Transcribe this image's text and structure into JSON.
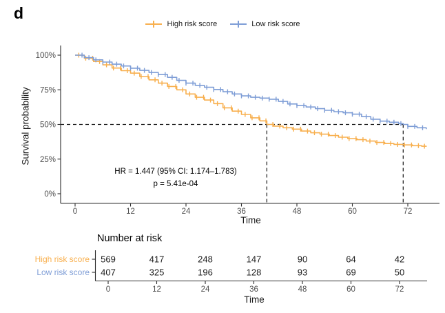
{
  "panel_label": "d",
  "colors": {
    "high": "#F8AF4D",
    "low": "#7E9DD6",
    "axis": "#2b2b2b",
    "tick_text": "#4d4d4d",
    "dashed": "#111111",
    "number_text": "#1a1a1a"
  },
  "legend": {
    "items": [
      {
        "key": "high",
        "label": "High risk score"
      },
      {
        "key": "low",
        "label": "Low risk score"
      }
    ]
  },
  "annotation": {
    "line1": "HR = 1.447 (95% CI: 1.174–1.783)",
    "line2": "p = 5.41e-04"
  },
  "chart_data": {
    "type": "line",
    "subtype": "kaplan-meier-step",
    "title": "",
    "xlabel": "Time",
    "ylabel": "Survival probability",
    "xlim": [
      0,
      76
    ],
    "xticks": [
      0,
      12,
      24,
      36,
      48,
      60,
      72
    ],
    "ylim": [
      0,
      100
    ],
    "yticks": [
      {
        "p": 100,
        "label": "100%"
      },
      {
        "p": 75,
        "label": "75%"
      },
      {
        "p": 50,
        "label": "50%"
      },
      {
        "p": 25,
        "label": "25%"
      },
      {
        "p": 0,
        "label": "0%"
      }
    ],
    "grid": false,
    "legend_position": "top",
    "median_lines": {
      "reference_percent": 50,
      "high_median_time": 41.5,
      "low_median_time": 71
    },
    "series": [
      {
        "name": "High risk score",
        "color_key": "high",
        "points": [
          [
            0,
            100
          ],
          [
            2,
            97.8
          ],
          [
            4,
            95.4
          ],
          [
            6,
            93
          ],
          [
            8,
            90.7
          ],
          [
            10,
            88.8
          ],
          [
            12,
            87
          ],
          [
            14,
            84.6
          ],
          [
            16,
            82.2
          ],
          [
            18,
            79.8
          ],
          [
            20,
            77.4
          ],
          [
            22,
            75
          ],
          [
            24,
            72
          ],
          [
            26,
            69.6
          ],
          [
            28,
            67.6
          ],
          [
            30,
            65
          ],
          [
            32,
            62
          ],
          [
            34,
            59.6
          ],
          [
            36,
            57.2
          ],
          [
            38,
            54.8
          ],
          [
            40,
            52.6
          ],
          [
            41.5,
            50
          ],
          [
            43,
            48.8
          ],
          [
            45,
            47.6
          ],
          [
            47,
            46.6
          ],
          [
            49,
            45.2
          ],
          [
            51,
            44
          ],
          [
            53,
            43
          ],
          [
            55,
            42
          ],
          [
            57,
            40.8
          ],
          [
            59,
            39.8
          ],
          [
            61,
            39
          ],
          [
            63,
            38
          ],
          [
            65,
            37
          ],
          [
            67,
            36.2
          ],
          [
            69,
            35.6
          ],
          [
            71,
            35.2
          ],
          [
            73,
            34.7
          ],
          [
            75,
            34.3
          ],
          [
            76,
            34
          ]
        ],
        "censor_times": [
          0.8,
          2.3,
          3.8,
          5.3,
          6.8,
          8.3,
          9.8,
          11.3,
          12.8,
          14.3,
          15.8,
          17.3,
          18.8,
          20.3,
          21.8,
          23.3,
          24.8,
          26.3,
          27.8,
          29.3,
          30.8,
          32.3,
          33.8,
          35.3,
          36.8,
          38.3,
          39.8,
          41.3,
          42.8,
          44.3,
          45.8,
          47.3,
          48.8,
          50.3,
          51.8,
          53.3,
          54.8,
          56.3,
          57.8,
          59.3,
          60.8,
          62.3,
          63.8,
          65.3,
          66.8,
          68.3,
          69.8,
          71.3,
          72.8,
          74.3,
          75.6
        ]
      },
      {
        "name": "Low risk score",
        "color_key": "low",
        "points": [
          [
            0,
            100
          ],
          [
            2,
            98.2
          ],
          [
            4,
            96.6
          ],
          [
            6,
            95
          ],
          [
            8,
            93.5
          ],
          [
            10,
            92.2
          ],
          [
            12,
            90.6
          ],
          [
            14,
            89
          ],
          [
            16,
            87.5
          ],
          [
            18,
            86
          ],
          [
            20,
            84
          ],
          [
            22,
            81.8
          ],
          [
            24,
            79.8
          ],
          [
            26,
            78.2
          ],
          [
            28,
            76.8
          ],
          [
            30,
            75.2
          ],
          [
            32,
            73.6
          ],
          [
            34,
            72
          ],
          [
            36,
            70.6
          ],
          [
            38,
            69.6
          ],
          [
            40,
            69
          ],
          [
            42,
            68.2
          ],
          [
            44,
            66.6
          ],
          [
            46,
            64.8
          ],
          [
            48,
            63.6
          ],
          [
            50,
            62.6
          ],
          [
            52,
            61.4
          ],
          [
            54,
            60.2
          ],
          [
            56,
            59.2
          ],
          [
            58,
            58.4
          ],
          [
            60,
            57.4
          ],
          [
            62,
            55.6
          ],
          [
            64,
            53.8
          ],
          [
            66,
            52.4
          ],
          [
            68,
            51.6
          ],
          [
            70,
            50.6
          ],
          [
            71,
            50
          ],
          [
            72,
            48.6
          ],
          [
            74,
            47.6
          ],
          [
            76,
            46.6
          ]
        ],
        "censor_times": [
          1.5,
          3,
          4.5,
          6,
          7.5,
          9,
          10.5,
          12,
          13.5,
          15,
          16.5,
          18,
          19.5,
          21,
          22.5,
          24,
          25.5,
          27,
          28.5,
          30,
          31.5,
          33,
          34.5,
          36,
          37.5,
          39,
          40.5,
          42,
          43.5,
          45,
          46.5,
          48,
          49.5,
          51,
          52.5,
          54,
          55.5,
          57,
          58.5,
          60,
          61.5,
          63,
          64.5,
          66,
          67.5,
          69,
          70.5,
          72,
          73.5,
          75.2
        ]
      }
    ]
  },
  "risk_table": {
    "title": "Number at risk",
    "xlabel": "Time",
    "xticks": [
      0,
      12,
      24,
      36,
      48,
      60,
      72
    ],
    "rows": [
      {
        "label": "High risk score",
        "color_key": "high",
        "values": [
          569,
          417,
          248,
          147,
          90,
          64,
          42
        ]
      },
      {
        "label": "Low risk score",
        "color_key": "low",
        "values": [
          407,
          325,
          196,
          128,
          93,
          69,
          50
        ]
      }
    ]
  }
}
